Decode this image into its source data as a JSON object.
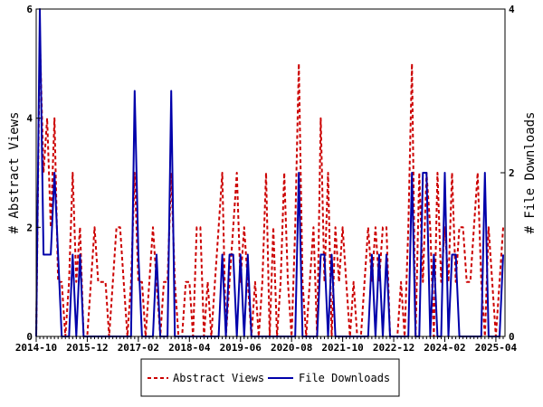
{
  "chart_data": {
    "type": "line",
    "xlabel": "",
    "y_left_label": "# Abstract Views",
    "y_right_label": "# File Downloads",
    "y_left_lim": [
      0,
      6
    ],
    "y_right_lim": [
      0,
      4
    ],
    "y_left_ticks": [
      "0",
      "2",
      "4",
      "6"
    ],
    "y_right_ticks": [
      "0",
      "2",
      "4"
    ],
    "x_tick_labels": [
      "2014-10",
      "2015-12",
      "2017-02",
      "2018-04",
      "2019-06",
      "2020-08",
      "2021-10",
      "2022-12",
      "2024-02",
      "2025-04"
    ],
    "x_range": [
      "2014-10",
      "2025-06"
    ],
    "grid": false,
    "legend_position": "bottom-center",
    "colors": {
      "abstract_views": "#cc0000",
      "file_downloads": "#0000aa"
    },
    "series": [
      {
        "name": "Abstract Views",
        "axis": "left",
        "style": "dashed",
        "points": [
          [
            "2014-10",
            0
          ],
          [
            "2014-11",
            5.5
          ],
          [
            "2014-12",
            3
          ],
          [
            "2015-01",
            4
          ],
          [
            "2015-02",
            2
          ],
          [
            "2015-03",
            4
          ],
          [
            "2015-04",
            1
          ],
          [
            "2015-05",
            1
          ],
          [
            "2015-06",
            0
          ],
          [
            "2015-07",
            1
          ],
          [
            "2015-08",
            3
          ],
          [
            "2015-09",
            1
          ],
          [
            "2015-10",
            2
          ],
          [
            "2015-11",
            0
          ],
          [
            "2015-12",
            0
          ],
          [
            "2016-01",
            1
          ],
          [
            "2016-02",
            2
          ],
          [
            "2016-03",
            1
          ],
          [
            "2016-04",
            1
          ],
          [
            "2016-05",
            1
          ],
          [
            "2016-06",
            0
          ],
          [
            "2016-07",
            1
          ],
          [
            "2016-08",
            2
          ],
          [
            "2016-09",
            2
          ],
          [
            "2016-10",
            1
          ],
          [
            "2016-11",
            0
          ],
          [
            "2016-12",
            1
          ],
          [
            "2017-01",
            3
          ],
          [
            "2017-02",
            1
          ],
          [
            "2017-03",
            1
          ],
          [
            "2017-04",
            0
          ],
          [
            "2017-05",
            1
          ],
          [
            "2017-06",
            2
          ],
          [
            "2017-07",
            1
          ],
          [
            "2017-08",
            0
          ],
          [
            "2017-09",
            1
          ],
          [
            "2017-10",
            1
          ],
          [
            "2017-11",
            3
          ],
          [
            "2017-12",
            1
          ],
          [
            "2018-01",
            0
          ],
          [
            "2018-02",
            0
          ],
          [
            "2018-03",
            1
          ],
          [
            "2018-04",
            1
          ],
          [
            "2018-05",
            0
          ],
          [
            "2018-06",
            2
          ],
          [
            "2018-07",
            2
          ],
          [
            "2018-08",
            0
          ],
          [
            "2018-09",
            1
          ],
          [
            "2018-10",
            0
          ],
          [
            "2018-11",
            1
          ],
          [
            "2018-12",
            2
          ],
          [
            "2019-01",
            3
          ],
          [
            "2019-02",
            0
          ],
          [
            "2019-03",
            1
          ],
          [
            "2019-04",
            2
          ],
          [
            "2019-05",
            3
          ],
          [
            "2019-06",
            1
          ],
          [
            "2019-07",
            2
          ],
          [
            "2019-08",
            1
          ],
          [
            "2019-09",
            0
          ],
          [
            "2019-10",
            1
          ],
          [
            "2019-11",
            0
          ],
          [
            "2019-12",
            1
          ],
          [
            "2020-01",
            3
          ],
          [
            "2020-02",
            0
          ],
          [
            "2020-03",
            2
          ],
          [
            "2020-04",
            0
          ],
          [
            "2020-05",
            1
          ],
          [
            "2020-06",
            3
          ],
          [
            "2020-07",
            1
          ],
          [
            "2020-08",
            0
          ],
          [
            "2020-09",
            2
          ],
          [
            "2020-10",
            5
          ],
          [
            "2020-11",
            1
          ],
          [
            "2020-12",
            0
          ],
          [
            "2021-01",
            1
          ],
          [
            "2021-02",
            2
          ],
          [
            "2021-03",
            0
          ],
          [
            "2021-04",
            4
          ],
          [
            "2021-05",
            1
          ],
          [
            "2021-06",
            3
          ],
          [
            "2021-07",
            0
          ],
          [
            "2021-08",
            2
          ],
          [
            "2021-09",
            1
          ],
          [
            "2021-10",
            2
          ],
          [
            "2021-11",
            1
          ],
          [
            "2021-12",
            0
          ],
          [
            "2022-01",
            1
          ],
          [
            "2022-02",
            0
          ],
          [
            "2022-03",
            0
          ],
          [
            "2022-04",
            1
          ],
          [
            "2022-05",
            2
          ],
          [
            "2022-06",
            1
          ],
          [
            "2022-07",
            2
          ],
          [
            "2022-08",
            1
          ],
          [
            "2022-09",
            2
          ],
          [
            "2022-10",
            2
          ],
          [
            "2022-11",
            0
          ],
          [
            "2022-12",
            0
          ],
          [
            "2023-01",
            0
          ],
          [
            "2023-02",
            1
          ],
          [
            "2023-03",
            0
          ],
          [
            "2023-04",
            2
          ],
          [
            "2023-05",
            5
          ],
          [
            "2023-06",
            0
          ],
          [
            "2023-07",
            3
          ],
          [
            "2023-08",
            1
          ],
          [
            "2023-09",
            3
          ],
          [
            "2023-10",
            2
          ],
          [
            "2023-11",
            0
          ],
          [
            "2023-12",
            3
          ],
          [
            "2024-01",
            1
          ],
          [
            "2024-02",
            2
          ],
          [
            "2024-03",
            1
          ],
          [
            "2024-04",
            3
          ],
          [
            "2024-05",
            1
          ],
          [
            "2024-06",
            2
          ],
          [
            "2024-07",
            2
          ],
          [
            "2024-08",
            1
          ],
          [
            "2024-09",
            1
          ],
          [
            "2024-10",
            2
          ],
          [
            "2024-11",
            3
          ],
          [
            "2024-12",
            1
          ],
          [
            "2025-01",
            0
          ],
          [
            "2025-02",
            2
          ],
          [
            "2025-03",
            1
          ],
          [
            "2025-04",
            0
          ],
          [
            "2025-05",
            1
          ],
          [
            "2025-06",
            2
          ]
        ]
      },
      {
        "name": "File Downloads",
        "axis": "right",
        "style": "solid",
        "points": [
          [
            "2014-10",
            0
          ],
          [
            "2014-11",
            4
          ],
          [
            "2014-12",
            1
          ],
          [
            "2015-01",
            1
          ],
          [
            "2015-02",
            1
          ],
          [
            "2015-03",
            2
          ],
          [
            "2015-04",
            1
          ],
          [
            "2015-05",
            0
          ],
          [
            "2015-06",
            0
          ],
          [
            "2015-07",
            0
          ],
          [
            "2015-08",
            1
          ],
          [
            "2015-09",
            0
          ],
          [
            "2015-10",
            1
          ],
          [
            "2015-11",
            0
          ],
          [
            "2015-12",
            0
          ],
          [
            "2016-01",
            0
          ],
          [
            "2016-02",
            0
          ],
          [
            "2016-03",
            0
          ],
          [
            "2016-04",
            0
          ],
          [
            "2016-05",
            0
          ],
          [
            "2016-06",
            0
          ],
          [
            "2016-07",
            0
          ],
          [
            "2016-08",
            0
          ],
          [
            "2016-09",
            0
          ],
          [
            "2016-10",
            0
          ],
          [
            "2016-11",
            0
          ],
          [
            "2016-12",
            0
          ],
          [
            "2017-01",
            3
          ],
          [
            "2017-02",
            1
          ],
          [
            "2017-03",
            0
          ],
          [
            "2017-04",
            0
          ],
          [
            "2017-05",
            0
          ],
          [
            "2017-06",
            0
          ],
          [
            "2017-07",
            1
          ],
          [
            "2017-08",
            0
          ],
          [
            "2017-09",
            0
          ],
          [
            "2017-10",
            0
          ],
          [
            "2017-11",
            3
          ],
          [
            "2017-12",
            0
          ],
          [
            "2018-01",
            0
          ],
          [
            "2018-02",
            0
          ],
          [
            "2018-03",
            0
          ],
          [
            "2018-04",
            0
          ],
          [
            "2018-05",
            0
          ],
          [
            "2018-06",
            0
          ],
          [
            "2018-07",
            0
          ],
          [
            "2018-08",
            0
          ],
          [
            "2018-09",
            0
          ],
          [
            "2018-10",
            0
          ],
          [
            "2018-11",
            0
          ],
          [
            "2018-12",
            0
          ],
          [
            "2019-01",
            1
          ],
          [
            "2019-02",
            0
          ],
          [
            "2019-03",
            1
          ],
          [
            "2019-04",
            1
          ],
          [
            "2019-05",
            0
          ],
          [
            "2019-06",
            1
          ],
          [
            "2019-07",
            0
          ],
          [
            "2019-08",
            1
          ],
          [
            "2019-09",
            0
          ],
          [
            "2019-10",
            0
          ],
          [
            "2019-11",
            0
          ],
          [
            "2019-12",
            0
          ],
          [
            "2020-01",
            0
          ],
          [
            "2020-02",
            0
          ],
          [
            "2020-03",
            0
          ],
          [
            "2020-04",
            0
          ],
          [
            "2020-05",
            0
          ],
          [
            "2020-06",
            0
          ],
          [
            "2020-07",
            0
          ],
          [
            "2020-08",
            0
          ],
          [
            "2020-09",
            0
          ],
          [
            "2020-10",
            2
          ],
          [
            "2020-11",
            0
          ],
          [
            "2020-12",
            0
          ],
          [
            "2021-01",
            0
          ],
          [
            "2021-02",
            0
          ],
          [
            "2021-03",
            0
          ],
          [
            "2021-04",
            1
          ],
          [
            "2021-05",
            1
          ],
          [
            "2021-06",
            0
          ],
          [
            "2021-07",
            1
          ],
          [
            "2021-08",
            0
          ],
          [
            "2021-09",
            0
          ],
          [
            "2021-10",
            0
          ],
          [
            "2021-11",
            0
          ],
          [
            "2021-12",
            0
          ],
          [
            "2022-01",
            0
          ],
          [
            "2022-02",
            0
          ],
          [
            "2022-03",
            0
          ],
          [
            "2022-04",
            0
          ],
          [
            "2022-05",
            0
          ],
          [
            "2022-06",
            1
          ],
          [
            "2022-07",
            0
          ],
          [
            "2022-08",
            1
          ],
          [
            "2022-09",
            0
          ],
          [
            "2022-10",
            1
          ],
          [
            "2022-11",
            0
          ],
          [
            "2022-12",
            0
          ],
          [
            "2023-01",
            0
          ],
          [
            "2023-02",
            0
          ],
          [
            "2023-03",
            0
          ],
          [
            "2023-04",
            0
          ],
          [
            "2023-05",
            2
          ],
          [
            "2023-06",
            0
          ],
          [
            "2023-07",
            0
          ],
          [
            "2023-08",
            2
          ],
          [
            "2023-09",
            2
          ],
          [
            "2023-10",
            0
          ],
          [
            "2023-11",
            1
          ],
          [
            "2023-12",
            0
          ],
          [
            "2024-01",
            0
          ],
          [
            "2024-02",
            2
          ],
          [
            "2024-03",
            0
          ],
          [
            "2024-04",
            1
          ],
          [
            "2024-05",
            1
          ],
          [
            "2024-06",
            0
          ],
          [
            "2024-07",
            0
          ],
          [
            "2024-08",
            0
          ],
          [
            "2024-09",
            0
          ],
          [
            "2024-10",
            0
          ],
          [
            "2024-11",
            0
          ],
          [
            "2024-12",
            0
          ],
          [
            "2025-01",
            2
          ],
          [
            "2025-02",
            0
          ],
          [
            "2025-03",
            0
          ],
          [
            "2025-04",
            0
          ],
          [
            "2025-05",
            0
          ],
          [
            "2025-06",
            1
          ]
        ]
      }
    ]
  },
  "legend": {
    "items": [
      {
        "label": "Abstract Views",
        "color": "#cc0000",
        "style": "dashed"
      },
      {
        "label": "File Downloads",
        "color": "#0000aa",
        "style": "solid"
      }
    ]
  }
}
